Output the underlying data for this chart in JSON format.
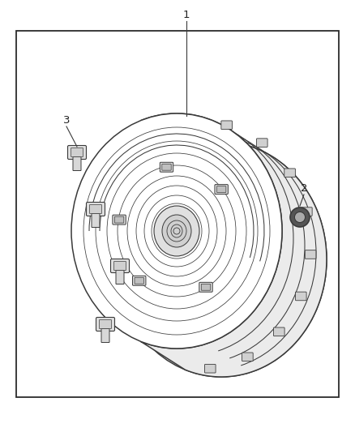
{
  "background_color": "#ffffff",
  "border_color": "#2b2b2b",
  "border_linewidth": 1.2,
  "figure_width": 4.38,
  "figure_height": 5.33,
  "dpi": 100,
  "label1": "1",
  "label2": "2",
  "label3": "3",
  "line_color": "#3a3a3a",
  "text_color": "#222222",
  "font_size": 9.5
}
